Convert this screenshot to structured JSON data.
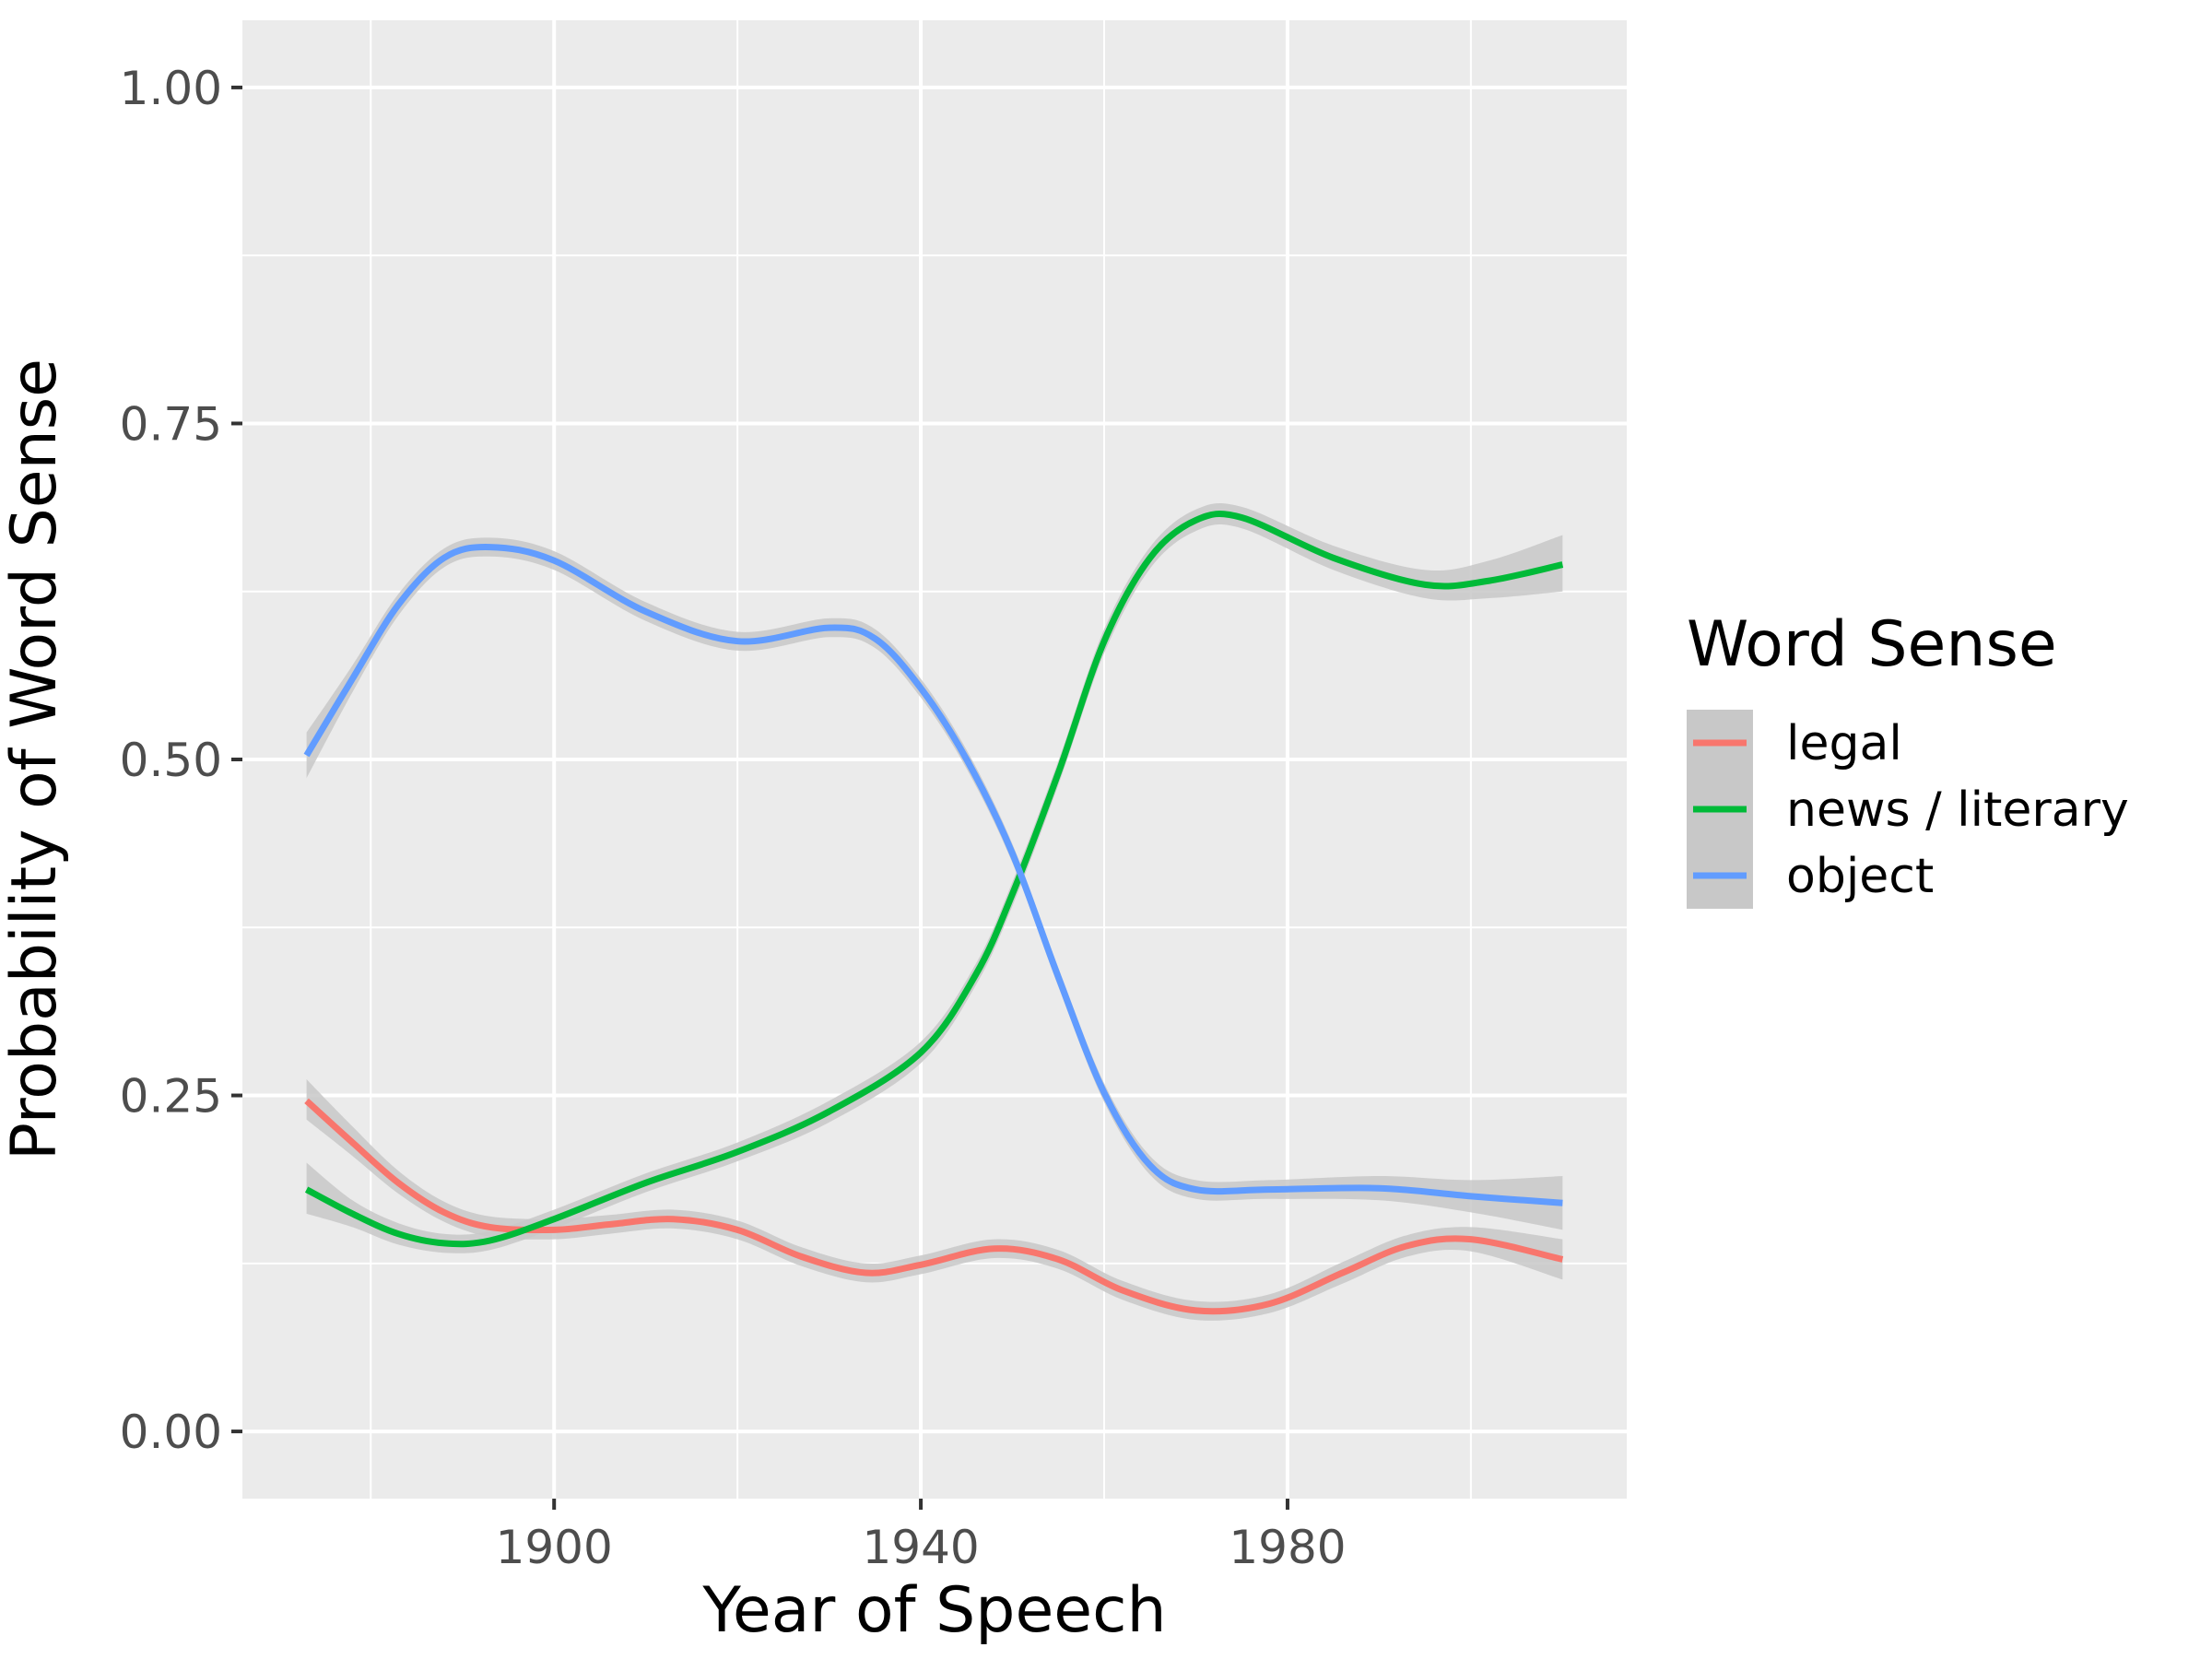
{
  "chart_data": {
    "type": "line",
    "xlabel": "Year of Speech",
    "ylabel": "Probability of Word Sense",
    "xlim": [
      1866,
      2017
    ],
    "ylim": [
      -0.05,
      1.05
    ],
    "x_ticks": [
      1900,
      1940,
      1980
    ],
    "x_minor_ticks": [
      1880,
      1920,
      1960,
      2000
    ],
    "y_ticks": [
      0.0,
      0.25,
      0.5,
      0.75,
      1.0
    ],
    "y_tick_labels": [
      "0.00",
      "0.25",
      "0.50",
      "0.75",
      "1.00"
    ],
    "y_minor_ticks": [
      0.125,
      0.375,
      0.625,
      0.875
    ],
    "grid": true,
    "panel_background": "#ebebeb",
    "grid_color": "#ffffff",
    "ribbon_color": "#c8c8c8",
    "legend": {
      "title": "Word Sense",
      "position": "right"
    },
    "series": [
      {
        "name": "legal",
        "color": "#f8766d",
        "x": [
          1873,
          1878,
          1883,
          1888,
          1893,
          1900,
          1906,
          1913,
          1920,
          1927,
          1934,
          1940,
          1948,
          1955,
          1962,
          1970,
          1978,
          1986,
          1993,
          2000,
          2010
        ],
        "y": [
          0.246,
          0.215,
          0.185,
          0.163,
          0.152,
          0.15,
          0.154,
          0.158,
          0.15,
          0.13,
          0.118,
          0.124,
          0.136,
          0.128,
          0.105,
          0.09,
          0.095,
          0.118,
          0.138,
          0.143,
          0.128
        ],
        "lower": [
          0.232,
          0.205,
          0.177,
          0.156,
          0.145,
          0.143,
          0.147,
          0.151,
          0.143,
          0.123,
          0.111,
          0.117,
          0.129,
          0.121,
          0.098,
          0.083,
          0.088,
          0.11,
          0.13,
          0.134,
          0.113
        ],
        "upper": [
          0.262,
          0.227,
          0.194,
          0.171,
          0.16,
          0.158,
          0.161,
          0.165,
          0.157,
          0.137,
          0.125,
          0.131,
          0.143,
          0.135,
          0.112,
          0.097,
          0.102,
          0.126,
          0.146,
          0.152,
          0.143
        ]
      },
      {
        "name": "news / literary",
        "color": "#00ba38",
        "x": [
          1873,
          1878,
          1883,
          1888,
          1893,
          1900,
          1910,
          1920,
          1930,
          1940,
          1946,
          1950,
          1955,
          1960,
          1965,
          1970,
          1975,
          1985,
          1995,
          2002,
          2010
        ],
        "y": [
          0.18,
          0.162,
          0.147,
          0.14,
          0.142,
          0.158,
          0.185,
          0.208,
          0.238,
          0.282,
          0.34,
          0.4,
          0.49,
          0.588,
          0.65,
          0.678,
          0.68,
          0.65,
          0.63,
          0.633,
          0.645
        ],
        "lower": [
          0.162,
          0.152,
          0.139,
          0.133,
          0.135,
          0.151,
          0.178,
          0.201,
          0.23,
          0.274,
          0.332,
          0.391,
          0.481,
          0.579,
          0.642,
          0.67,
          0.672,
          0.641,
          0.62,
          0.62,
          0.625
        ],
        "upper": [
          0.2,
          0.172,
          0.155,
          0.147,
          0.149,
          0.165,
          0.192,
          0.215,
          0.246,
          0.29,
          0.348,
          0.409,
          0.499,
          0.597,
          0.658,
          0.686,
          0.688,
          0.659,
          0.641,
          0.648,
          0.667
        ]
      },
      {
        "name": "object",
        "color": "#619cff",
        "x": [
          1873,
          1878,
          1883,
          1888,
          1893,
          1900,
          1910,
          1920,
          1930,
          1935,
          1940,
          1945,
          1950,
          1955,
          1960,
          1965,
          1970,
          1978,
          1990,
          2000,
          2010
        ],
        "y": [
          0.503,
          0.56,
          0.615,
          0.65,
          0.658,
          0.648,
          0.61,
          0.588,
          0.598,
          0.59,
          0.553,
          0.5,
          0.43,
          0.338,
          0.252,
          0.198,
          0.18,
          0.18,
          0.181,
          0.175,
          0.17
        ],
        "lower": [
          0.486,
          0.55,
          0.607,
          0.643,
          0.651,
          0.641,
          0.603,
          0.581,
          0.591,
          0.583,
          0.546,
          0.493,
          0.423,
          0.331,
          0.245,
          0.191,
          0.173,
          0.173,
          0.172,
          0.163,
          0.15
        ],
        "upper": [
          0.52,
          0.57,
          0.623,
          0.657,
          0.665,
          0.655,
          0.617,
          0.595,
          0.605,
          0.597,
          0.56,
          0.507,
          0.437,
          0.345,
          0.259,
          0.205,
          0.187,
          0.187,
          0.19,
          0.187,
          0.19
        ]
      }
    ]
  }
}
